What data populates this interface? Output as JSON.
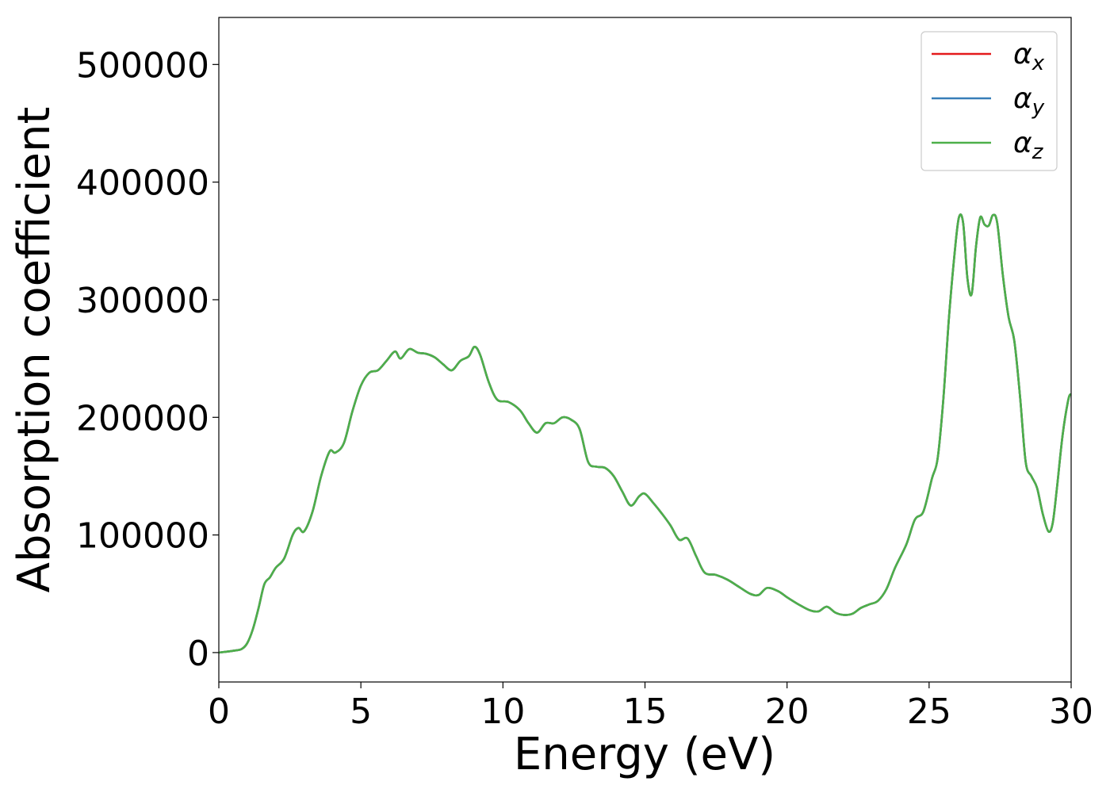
{
  "chart_data": {
    "type": "line",
    "title": "",
    "xlabel": "Energy (eV)",
    "ylabel": "Absorption coefficient",
    "xlim": [
      0,
      30
    ],
    "ylim": [
      -25000,
      540000
    ],
    "xticks": [
      0,
      5,
      10,
      15,
      20,
      25,
      30
    ],
    "xtick_labels": [
      "0",
      "5",
      "10",
      "15",
      "20",
      "25",
      "30"
    ],
    "yticks": [
      0,
      100000,
      200000,
      300000,
      400000,
      500000
    ],
    "ytick_labels": [
      "0",
      "100000",
      "200000",
      "300000",
      "400000",
      "500000"
    ],
    "grid": false,
    "legend_position": "top-right",
    "x": [
      0,
      0.5,
      0.8,
      1.0,
      1.2,
      1.4,
      1.6,
      1.8,
      2.0,
      2.3,
      2.6,
      2.8,
      3.0,
      3.3,
      3.6,
      3.9,
      4.1,
      4.4,
      4.7,
      5.0,
      5.3,
      5.6,
      5.9,
      6.2,
      6.4,
      6.7,
      7.0,
      7.3,
      7.6,
      7.9,
      8.2,
      8.5,
      8.8,
      9.0,
      9.2,
      9.5,
      9.8,
      10.2,
      10.6,
      10.9,
      11.2,
      11.5,
      11.8,
      12.1,
      12.4,
      12.7,
      13.0,
      13.3,
      13.6,
      13.9,
      14.2,
      14.5,
      14.8,
      15.0,
      15.3,
      15.6,
      15.9,
      16.2,
      16.5,
      16.8,
      17.1,
      17.5,
      17.9,
      18.3,
      18.7,
      19.0,
      19.3,
      19.7,
      20.0,
      20.4,
      20.8,
      21.1,
      21.4,
      21.7,
      22.0,
      22.3,
      22.6,
      22.9,
      23.2,
      23.5,
      23.8,
      24.2,
      24.5,
      24.8,
      25.1,
      25.3,
      25.5,
      25.7,
      25.9,
      26.05,
      26.2,
      26.35,
      26.5,
      26.65,
      26.8,
      26.95,
      27.1,
      27.25,
      27.4,
      27.6,
      27.8,
      28.0,
      28.2,
      28.4,
      28.6,
      28.8,
      29.0,
      29.2,
      29.35,
      29.5,
      29.7,
      29.9,
      30.0
    ],
    "series": [
      {
        "name": "α_x",
        "color": "#e41a1c",
        "values": [
          0,
          1500,
          3000,
          8000,
          20000,
          38000,
          58000,
          64000,
          72000,
          80000,
          100000,
          106000,
          103000,
          120000,
          150000,
          171000,
          170000,
          178000,
          205000,
          227000,
          238000,
          240000,
          248000,
          256000,
          250000,
          258000,
          255000,
          254000,
          251000,
          245000,
          240000,
          248000,
          252000,
          260000,
          253000,
          230000,
          215000,
          213000,
          206000,
          195000,
          187000,
          195000,
          195000,
          200000,
          198000,
          190000,
          162000,
          158000,
          157000,
          150000,
          137000,
          125000,
          133000,
          135000,
          127000,
          118000,
          108000,
          96000,
          97000,
          82000,
          68000,
          66000,
          62000,
          56000,
          50000,
          49000,
          55000,
          52000,
          47000,
          41000,
          36000,
          35000,
          39000,
          34000,
          32000,
          33000,
          38000,
          41000,
          44000,
          54000,
          72000,
          92000,
          113000,
          120000,
          148000,
          165000,
          215000,
          285000,
          340000,
          370000,
          365000,
          318000,
          305000,
          345000,
          370000,
          364000,
          363000,
          372000,
          365000,
          320000,
          285000,
          265000,
          218000,
          162000,
          150000,
          140000,
          118000,
          103000,
          110000,
          140000,
          185000,
          215000,
          220000
        ]
      },
      {
        "name": "α_y",
        "color": "#377eb8",
        "values": [
          0,
          1500,
          3000,
          8000,
          20000,
          38000,
          58000,
          64000,
          72000,
          80000,
          100000,
          106000,
          103000,
          120000,
          150000,
          171000,
          170000,
          178000,
          205000,
          227000,
          238000,
          240000,
          248000,
          256000,
          250000,
          258000,
          255000,
          254000,
          251000,
          245000,
          240000,
          248000,
          252000,
          260000,
          253000,
          230000,
          215000,
          213000,
          206000,
          195000,
          187000,
          195000,
          195000,
          200000,
          198000,
          190000,
          162000,
          158000,
          157000,
          150000,
          137000,
          125000,
          133000,
          135000,
          127000,
          118000,
          108000,
          96000,
          97000,
          82000,
          68000,
          66000,
          62000,
          56000,
          50000,
          49000,
          55000,
          52000,
          47000,
          41000,
          36000,
          35000,
          39000,
          34000,
          32000,
          33000,
          38000,
          41000,
          44000,
          54000,
          72000,
          92000,
          113000,
          120000,
          148000,
          165000,
          215000,
          285000,
          340000,
          370000,
          365000,
          318000,
          305000,
          345000,
          370000,
          364000,
          363000,
          372000,
          365000,
          320000,
          285000,
          265000,
          218000,
          162000,
          150000,
          140000,
          118000,
          103000,
          110000,
          140000,
          185000,
          215000,
          220000
        ]
      },
      {
        "name": "α_z",
        "color": "#4daf4a",
        "values": [
          0,
          1500,
          3000,
          8000,
          20000,
          38000,
          58000,
          64000,
          72000,
          80000,
          100000,
          106000,
          103000,
          120000,
          150000,
          171000,
          170000,
          178000,
          205000,
          227000,
          238000,
          240000,
          248000,
          256000,
          250000,
          258000,
          255000,
          254000,
          251000,
          245000,
          240000,
          248000,
          252000,
          260000,
          253000,
          230000,
          215000,
          213000,
          206000,
          195000,
          187000,
          195000,
          195000,
          200000,
          198000,
          190000,
          162000,
          158000,
          157000,
          150000,
          137000,
          125000,
          133000,
          135000,
          127000,
          118000,
          108000,
          96000,
          97000,
          82000,
          68000,
          66000,
          62000,
          56000,
          50000,
          49000,
          55000,
          52000,
          47000,
          41000,
          36000,
          35000,
          39000,
          34000,
          32000,
          33000,
          38000,
          41000,
          44000,
          54000,
          72000,
          92000,
          113000,
          120000,
          148000,
          165000,
          215000,
          285000,
          340000,
          370000,
          365000,
          318000,
          305000,
          345000,
          370000,
          364000,
          363000,
          372000,
          365000,
          320000,
          285000,
          265000,
          218000,
          162000,
          150000,
          140000,
          118000,
          103000,
          110000,
          140000,
          185000,
          215000,
          220000
        ]
      }
    ],
    "legend": [
      {
        "symbol": "α",
        "sub": "x",
        "color": "#e41a1c"
      },
      {
        "symbol": "α",
        "sub": "y",
        "color": "#377eb8"
      },
      {
        "symbol": "α",
        "sub": "z",
        "color": "#4daf4a"
      }
    ]
  }
}
